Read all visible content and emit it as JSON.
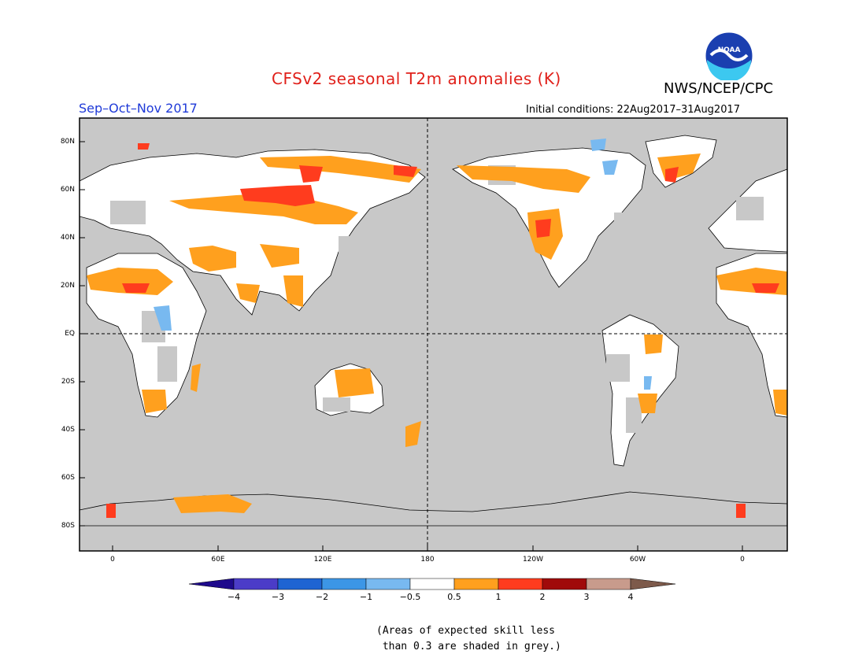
{
  "header": {
    "title": "CFSv2 seasonal T2m anomalies (K)",
    "agency": "NWS/NCEP/CPC",
    "season": "Sep–Oct–Nov 2017",
    "initial_conditions": "Initial conditions: 22Aug2017–31Aug2017",
    "logo_text": "NOAA",
    "title_color": "#e0201a",
    "season_color": "#1f3ad8"
  },
  "map": {
    "ocean_color": "#c8c8c8",
    "lat_labels": [
      "80N",
      "60N",
      "40N",
      "20N",
      "EQ",
      "20S",
      "40S",
      "60S",
      "80S"
    ],
    "lon_labels": [
      "0",
      "60E",
      "120E",
      "180",
      "120W",
      "60W",
      "0"
    ]
  },
  "colorbar": {
    "labels": [
      "−4",
      "−3",
      "−2",
      "−1",
      "−0.5",
      "0.5",
      "1",
      "2",
      "3",
      "4"
    ],
    "colors": [
      "#1e0a8c",
      "#4b3cc8",
      "#1e64d2",
      "#3c96e6",
      "#78b9f0",
      "#ffffff",
      "#ffa01e",
      "#ff3c1e",
      "#a00a0a",
      "#c89b8c",
      "#7d5a4b"
    ]
  },
  "footnote": {
    "line1": "(Areas of expected skill less",
    "line2": " than 0.3 are shaded in grey.)"
  }
}
